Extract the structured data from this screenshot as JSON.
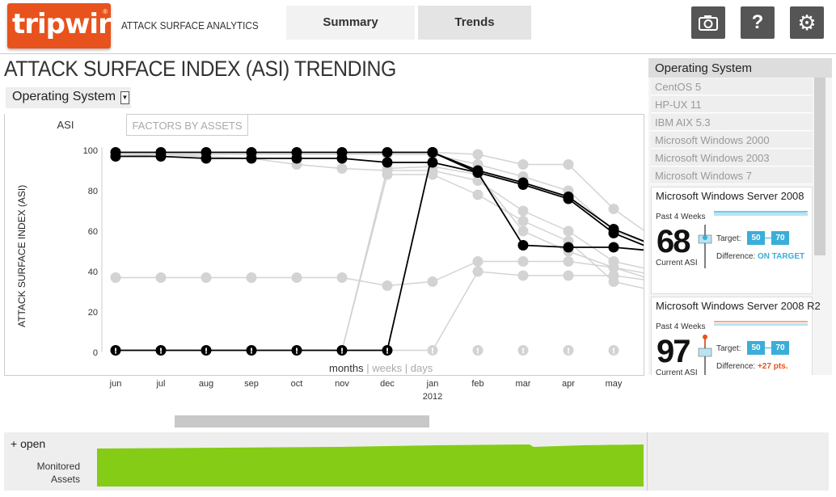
{
  "header": {
    "logo_text": "tripwire",
    "logo_tm": "®",
    "app_name": "ATTACK SURFACE ANALYTICS",
    "tabs": [
      {
        "label": "Summary"
      },
      {
        "label": "Trends"
      }
    ],
    "buttons": {
      "camera": "camera-icon",
      "help": "?",
      "help_icon": "question-icon",
      "settings": "⚙",
      "settings_icon": "gear-icon"
    }
  },
  "page": {
    "title": "ATTACK SURFACE INDEX (ASI) TRENDING",
    "dimension_select": "Operating System"
  },
  "chart_tabs": [
    {
      "label": "ASI"
    },
    {
      "label": "FACTORS BY ASSETS"
    }
  ],
  "range": {
    "months": "months",
    "sep": "|",
    "weeks": "weeks",
    "days": "days"
  },
  "chart_data": {
    "type": "line",
    "ylabel": "ATTACK SURFACE INDEX (ASI)",
    "ylim": [
      0,
      100
    ],
    "yticks": [
      0,
      20,
      40,
      60,
      80,
      100
    ],
    "x": [
      "jun",
      "jul",
      "aug",
      "sep",
      "oct",
      "nov",
      "dec",
      "jan",
      "feb",
      "mar",
      "apr",
      "may"
    ],
    "x_year": {
      "index": 7,
      "label": "2012"
    },
    "highlighted_series": [
      {
        "values": [
          99,
          99,
          99,
          99,
          99,
          99,
          99,
          99,
          90,
          84,
          77,
          61,
          52
        ]
      },
      {
        "values": [
          97,
          97,
          96,
          96,
          96,
          96,
          94,
          94,
          89,
          53,
          52,
          52,
          50
        ]
      },
      {
        "values": [
          1,
          1,
          1,
          1,
          1,
          1,
          1,
          99,
          89,
          83,
          76,
          59,
          50
        ]
      }
    ],
    "background_series": [
      {
        "values": [
          97,
          98,
          97,
          96,
          93,
          91,
          90,
          90,
          85,
          70,
          60,
          45,
          40
        ]
      },
      {
        "values": [
          37,
          37,
          37,
          37,
          37,
          37,
          33,
          35,
          45,
          45,
          45,
          42,
          38
        ]
      },
      {
        "values": [
          1,
          1,
          1,
          1,
          1,
          1,
          88,
          88,
          78,
          65,
          55,
          35,
          30
        ]
      },
      {
        "values": [
          1,
          1,
          1,
          1,
          1,
          1,
          1,
          1,
          40,
          38,
          38,
          38,
          35
        ]
      },
      {
        "values": [
          99,
          99,
          99,
          99,
          99,
          99,
          99,
          99,
          98,
          93,
          93,
          71,
          55
        ]
      },
      {
        "values": [
          98,
          98,
          98,
          98,
          98,
          98,
          98,
          98,
          93,
          87,
          80,
          60,
          52
        ]
      },
      {
        "values": [
          1,
          1,
          1,
          1,
          1,
          1,
          91,
          92,
          88,
          60,
          50,
          42,
          35
        ]
      }
    ],
    "exclamation_markers": [
      [
        0,
        1
      ],
      [
        1,
        1
      ],
      [
        2,
        1
      ],
      [
        3,
        1
      ],
      [
        4,
        1
      ],
      [
        5,
        1
      ],
      [
        6,
        1
      ],
      [
        7,
        1
      ],
      [
        8,
        1
      ],
      [
        9,
        1
      ],
      [
        10,
        1
      ],
      [
        11,
        1
      ]
    ]
  },
  "sidebar": {
    "header": "Operating System",
    "items": [
      {
        "label": "CentOS 5"
      },
      {
        "label": "HP-UX 11"
      },
      {
        "label": "IBM AIX 5.3"
      },
      {
        "label": "Microsoft Windows 2000"
      },
      {
        "label": "Microsoft Windows 2003"
      },
      {
        "label": "Microsoft Windows 7"
      }
    ],
    "cards": [
      {
        "title": "Microsoft Windows Server 2008",
        "past": "Past 4 Weeks",
        "value": "68",
        "current": "Current ASI",
        "target_label": "Target:",
        "target_low": "50",
        "target_high": "70",
        "diff_label": "Difference:",
        "diff_value": "ON TARGET",
        "diff_status": "ok",
        "spark_color": "#3aaed8"
      },
      {
        "title": "Microsoft Windows Server 2008 R2",
        "past": "Past 4 Weeks",
        "value": "97",
        "current": "Current ASI",
        "target_label": "Target:",
        "target_low": "50",
        "target_high": "70",
        "diff_label": "Difference:",
        "diff_value": "+27 pts.",
        "diff_status": "bad",
        "spark_color": "#e8521d"
      }
    ]
  },
  "bottom": {
    "open": "+ open",
    "monitored_line1": "Monitored",
    "monitored_line2": "Assets",
    "assets_color": "#84cc16"
  },
  "colors": {
    "accent": "#e8521d",
    "target": "#3aaed8",
    "series_dark": "#000000",
    "series_light": "#d3d3d3"
  }
}
